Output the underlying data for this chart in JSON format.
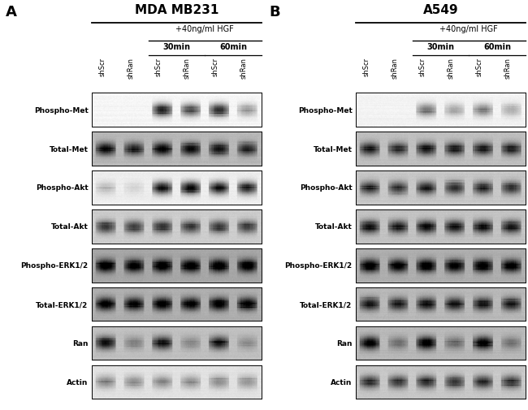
{
  "panel_A_title": "MDA MB231",
  "panel_B_title": "A549",
  "hgf_label": "+40ng/ml HGF",
  "time_30": "30min",
  "time_60": "60min",
  "col_labels": [
    "shScr",
    "shRan",
    "shScr",
    "shRan",
    "shScr",
    "shRan"
  ],
  "row_labels": [
    "Phospho-Met",
    "Total-Met",
    "Phospho-Akt",
    "Total-Akt",
    "Phospho-ERK1/2",
    "Total-ERK1/2",
    "Ran",
    "Actin"
  ],
  "bg_color": "#ffffff",
  "panel_A_blots": {
    "Phospho-Met": {
      "bg": 0.96,
      "bands": [
        0.0,
        0.0,
        0.85,
        0.65,
        0.8,
        0.35
      ]
    },
    "Total-Met": {
      "bg": 0.72,
      "bands": [
        0.7,
        0.62,
        0.75,
        0.72,
        0.68,
        0.6
      ]
    },
    "Phospho-Akt": {
      "bg": 0.93,
      "bands": [
        0.2,
        0.1,
        0.88,
        0.92,
        0.85,
        0.8
      ]
    },
    "Total-Akt": {
      "bg": 0.8,
      "bands": [
        0.6,
        0.57,
        0.62,
        0.58,
        0.6,
        0.56
      ]
    },
    "Phospho-ERK1/2": {
      "bg": 0.65,
      "bands": [
        0.78,
        0.75,
        0.8,
        0.77,
        0.79,
        0.76
      ]
    },
    "Total-ERK1/2": {
      "bg": 0.68,
      "bands": [
        0.75,
        0.72,
        0.78,
        0.74,
        0.76,
        0.73
      ]
    },
    "Ran": {
      "bg": 0.75,
      "bands": [
        0.72,
        0.25,
        0.7,
        0.22,
        0.68,
        0.2
      ]
    },
    "Actin": {
      "bg": 0.88,
      "bands": [
        0.35,
        0.32,
        0.34,
        0.31,
        0.33,
        0.3
      ]
    }
  },
  "panel_B_blots": {
    "Phospho-Met": {
      "bg": 0.95,
      "bands": [
        0.0,
        0.0,
        0.5,
        0.3,
        0.45,
        0.28
      ]
    },
    "Total-Met": {
      "bg": 0.75,
      "bands": [
        0.65,
        0.58,
        0.68,
        0.65,
        0.66,
        0.63
      ]
    },
    "Phospho-Akt": {
      "bg": 0.78,
      "bands": [
        0.62,
        0.58,
        0.68,
        0.62,
        0.65,
        0.6
      ]
    },
    "Total-Akt": {
      "bg": 0.76,
      "bands": [
        0.72,
        0.68,
        0.75,
        0.7,
        0.73,
        0.69
      ]
    },
    "Phospho-ERK1/2": {
      "bg": 0.68,
      "bands": [
        0.78,
        0.75,
        0.8,
        0.77,
        0.79,
        0.76
      ]
    },
    "Total-ERK1/2": {
      "bg": 0.72,
      "bands": [
        0.65,
        0.62,
        0.68,
        0.65,
        0.66,
        0.63
      ]
    },
    "Ran": {
      "bg": 0.72,
      "bands": [
        0.78,
        0.3,
        0.82,
        0.32,
        0.8,
        0.28
      ]
    },
    "Actin": {
      "bg": 0.78,
      "bands": [
        0.6,
        0.57,
        0.62,
        0.59,
        0.61,
        0.58
      ]
    }
  }
}
